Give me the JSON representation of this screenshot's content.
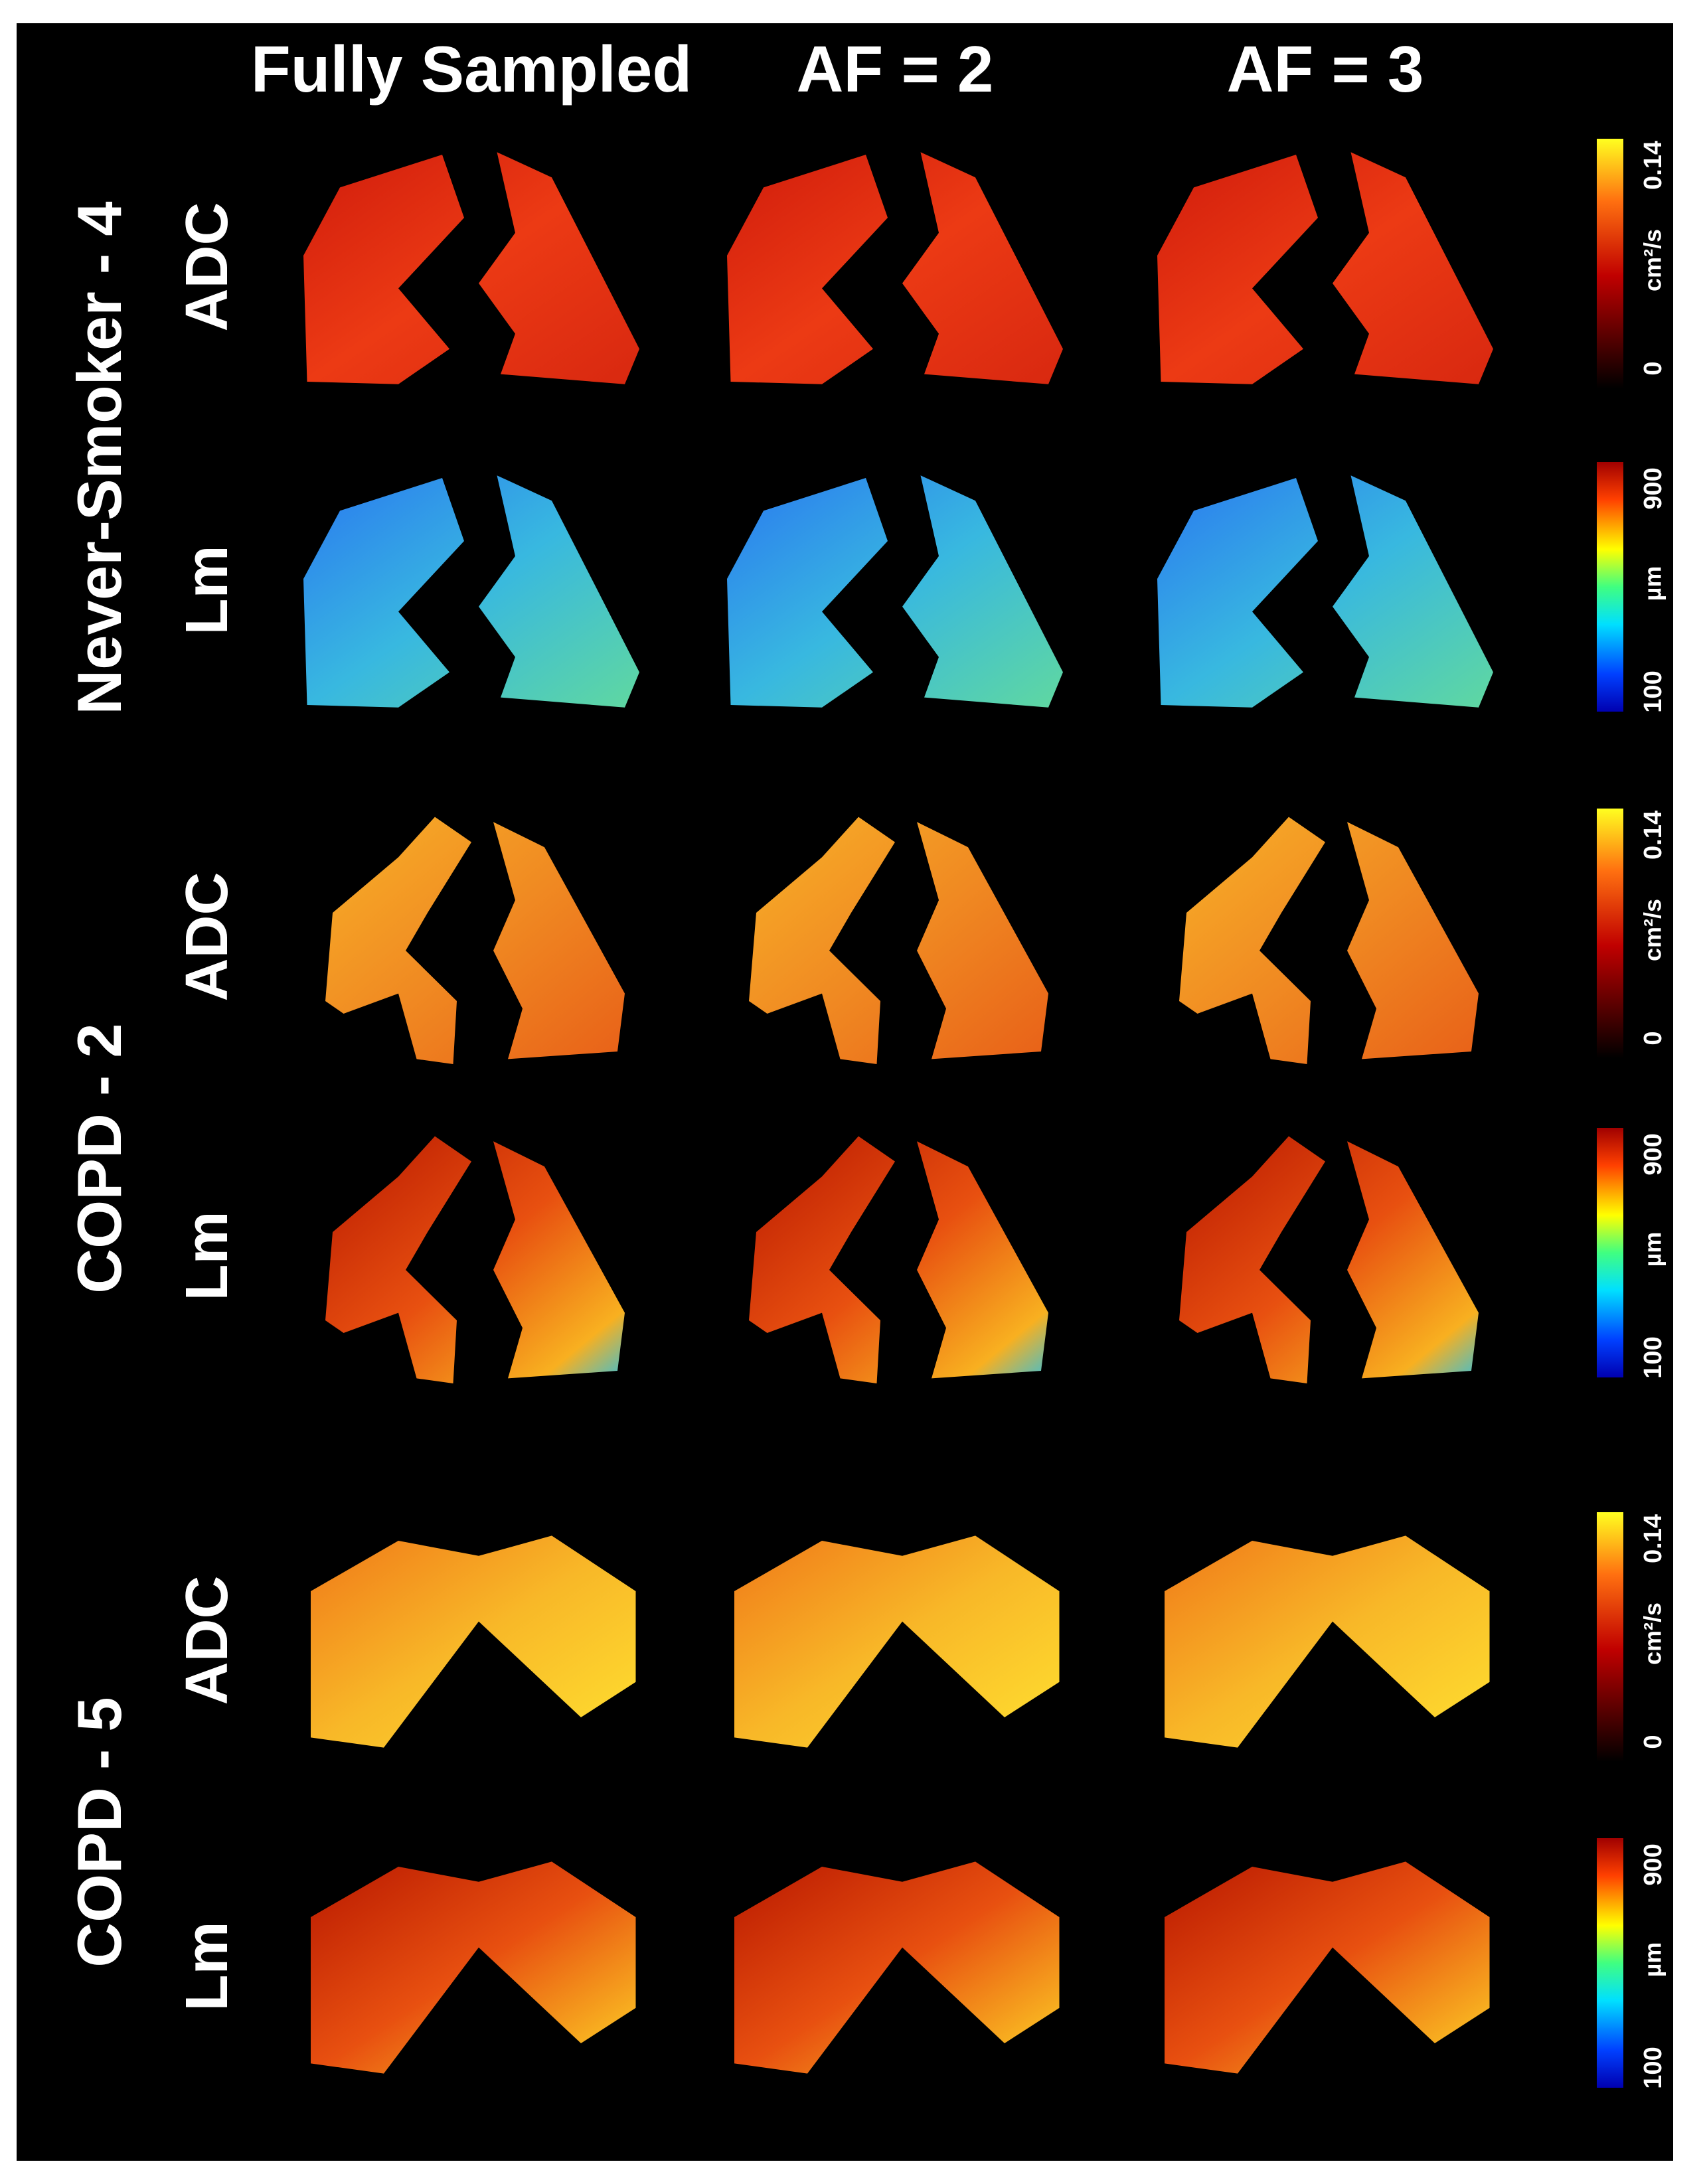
{
  "columns": [
    "Fully Sampled",
    "AF = 2",
    "AF = 3"
  ],
  "groups": [
    {
      "name": "Never-Smoker - 4",
      "rows": [
        {
          "label": "ADC",
          "colorbar": {
            "max": 0.14,
            "unit": "cm²/s",
            "min": 0
          }
        },
        {
          "label": "Lm",
          "colorbar": {
            "max": 900,
            "unit": "µm",
            "min": 100
          }
        }
      ]
    },
    {
      "name": "COPD - 2",
      "rows": [
        {
          "label": "ADC",
          "colorbar": {
            "max": 0.14,
            "unit": "cm²/s",
            "min": 0
          }
        },
        {
          "label": "Lm",
          "colorbar": {
            "max": 900,
            "unit": "µm",
            "min": 100
          }
        }
      ]
    },
    {
      "name": "COPD - 5",
      "rows": [
        {
          "label": "ADC",
          "colorbar": {
            "max": 0.14,
            "unit": "cm²/s",
            "min": 0
          }
        },
        {
          "label": "Lm",
          "colorbar": {
            "max": 900,
            "unit": "µm",
            "min": 100
          }
        }
      ]
    }
  ]
}
